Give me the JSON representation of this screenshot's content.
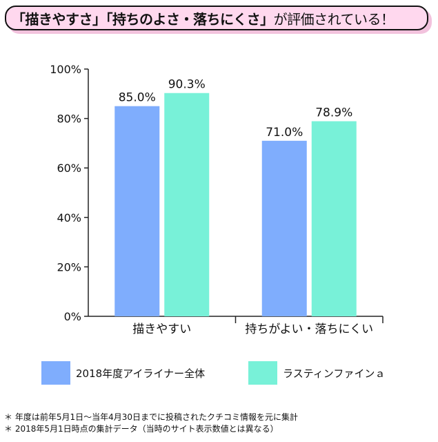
{
  "title": {
    "emphasis": "「描きやすさ」「持ちのよさ・落ちにくさ」",
    "rest": "が評価されている！"
  },
  "chart_data": {
    "type": "bar",
    "categories": [
      "描きやすい",
      "持ちがよい・落ちにくい"
    ],
    "series": [
      {
        "name": "2018年度アイライナー全体",
        "values": [
          85.0,
          71.0
        ],
        "labels": [
          "85.0%",
          "71.0%"
        ],
        "color": "#7fadfd"
      },
      {
        "name": "ラスティンファインａ",
        "values": [
          90.3,
          78.9
        ],
        "labels": [
          "90.3%",
          "78.9%"
        ],
        "color": "#78f1d8"
      }
    ],
    "ylim": [
      0,
      100
    ],
    "yticks": [
      "0%",
      "20%",
      "40%",
      "60%",
      "80%",
      "100%"
    ],
    "grid": false,
    "legend_position": "bottom"
  },
  "notes": [
    "＊ 年度は前年5月1日〜当年4月30日までに投稿されたクチコミ情報を元に集計",
    "＊ 2018年5月1日時点の集計データ（当時のサイト表示数値とは異なる）"
  ]
}
